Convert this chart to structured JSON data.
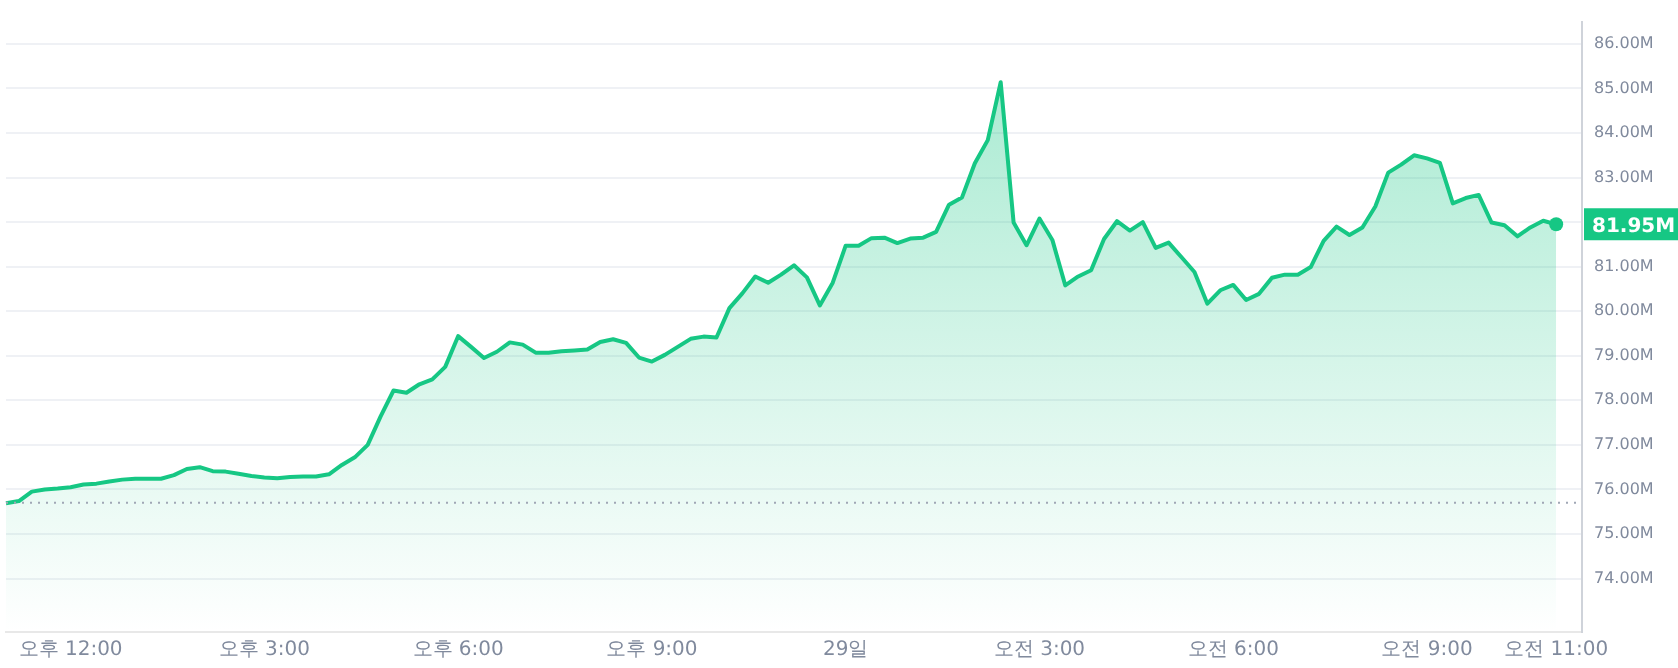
{
  "chart_data": {
    "type": "area",
    "categories": [
      null,
      null,
      null,
      null,
      null,
      "오후 12:00",
      null,
      null,
      null,
      null,
      null,
      null,
      null,
      null,
      null,
      null,
      null,
      null,
      null,
      null,
      "오후 3:00",
      null,
      null,
      null,
      null,
      null,
      null,
      null,
      null,
      null,
      null,
      null,
      null,
      null,
      null,
      "오후 6:00",
      null,
      null,
      null,
      null,
      null,
      null,
      null,
      null,
      null,
      null,
      null,
      null,
      null,
      null,
      "오후 9:00",
      null,
      null,
      null,
      null,
      null,
      null,
      null,
      null,
      null,
      null,
      null,
      null,
      null,
      null,
      "29일",
      null,
      null,
      null,
      null,
      null,
      null,
      null,
      null,
      null,
      null,
      null,
      null,
      null,
      null,
      "오전 3:00",
      null,
      null,
      null,
      null,
      null,
      null,
      null,
      null,
      null,
      null,
      null,
      null,
      null,
      null,
      "오전 6:00",
      null,
      null,
      null,
      null,
      null,
      null,
      null,
      null,
      null,
      null,
      null,
      null,
      null,
      null,
      "오전 9:00",
      null,
      null,
      null,
      null,
      null,
      null,
      null,
      null,
      null,
      "오전 11:00",
      null,
      null
    ],
    "ylim": [
      72.8,
      86.5
    ],
    "yticks": [
      {
        "value": 74,
        "label": "74.00M"
      },
      {
        "value": 75,
        "label": "75.00M"
      },
      {
        "value": 76,
        "label": "76.00M"
      },
      {
        "value": 77,
        "label": "77.00M"
      },
      {
        "value": 78,
        "label": "78.00M"
      },
      {
        "value": 79,
        "label": "79.00M"
      },
      {
        "value": 80,
        "label": "80.00M"
      },
      {
        "value": 81,
        "label": "81.00M"
      },
      {
        "value": 82,
        "label": null
      },
      {
        "value": 83,
        "label": "83.00M"
      },
      {
        "value": 84,
        "label": "84.00M"
      },
      {
        "value": 85,
        "label": "85.00M"
      },
      {
        "value": 86,
        "label": "86.00M"
      }
    ],
    "grid": "y",
    "legend": false,
    "ref_lines": [
      {
        "axis": "y",
        "value": 75.7,
        "color": "#a0a7b5",
        "line_style": "dotted"
      }
    ],
    "annotations": [
      "81.95M"
    ],
    "series": [
      {
        "color": "#16c784",
        "values": [
          75.69,
          75.74,
          75.95,
          76.0,
          76.02,
          76.05,
          76.11,
          76.13,
          76.18,
          76.22,
          76.24,
          76.24,
          76.24,
          76.32,
          76.46,
          76.5,
          76.41,
          76.4,
          76.35,
          76.3,
          76.27,
          76.25,
          76.28,
          76.29,
          76.29,
          76.34,
          76.55,
          76.72,
          77.0,
          77.64,
          78.22,
          78.17,
          78.36,
          78.47,
          78.75,
          79.44,
          79.2,
          78.95,
          79.09,
          79.3,
          79.25,
          79.07,
          79.07,
          79.1,
          79.12,
          79.14,
          79.31,
          79.37,
          79.29,
          78.96,
          78.87,
          79.02,
          79.2,
          79.38,
          79.43,
          79.41,
          80.07,
          80.4,
          80.78,
          80.64,
          80.82,
          81.03,
          80.76,
          80.13,
          80.64,
          81.47,
          81.47,
          81.64,
          81.65,
          81.53,
          81.63,
          81.65,
          81.78,
          82.39,
          82.55,
          83.32,
          83.84,
          85.14,
          81.99,
          81.48,
          82.08,
          81.6,
          80.58,
          80.78,
          80.92,
          81.62,
          82.02,
          81.81,
          82.0,
          81.42,
          81.54,
          81.21,
          80.88,
          80.17,
          80.47,
          80.59,
          80.25,
          80.39,
          80.75,
          80.82,
          80.82,
          80.99,
          81.58,
          81.9,
          81.71,
          81.88,
          82.35,
          83.11,
          83.29,
          83.5,
          83.43,
          83.33,
          82.42,
          82.54,
          82.61,
          81.99,
          81.93,
          81.68,
          81.88,
          82.03,
          81.95,
          null,
          null
        ]
      }
    ]
  }
}
